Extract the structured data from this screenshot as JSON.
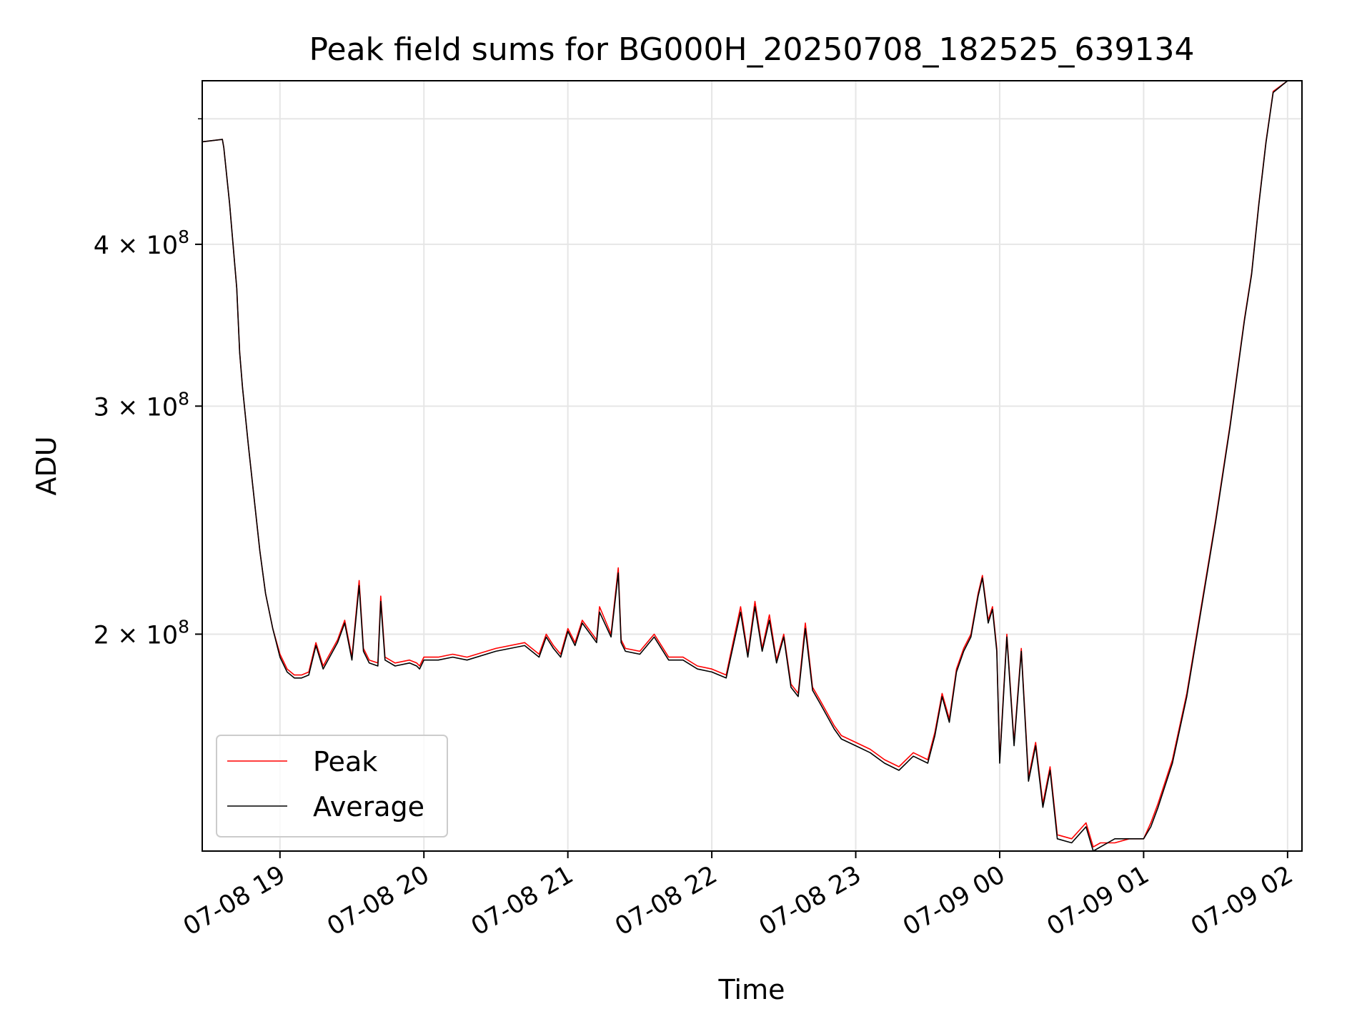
{
  "chart_data": {
    "type": "line",
    "title": "Peak field sums for BG000H_20250708_182525_639134",
    "xlabel": "Time",
    "ylabel": "ADU",
    "y_scale": "log",
    "grid": true,
    "legend_position": "lower-left",
    "x_tick_labels": [
      "07-08 19",
      "07-08 20",
      "07-08 21",
      "07-08 22",
      "07-08 23",
      "07-09 00",
      "07-09 01",
      "07-09 02"
    ],
    "x_ticks_hours": [
      19,
      20,
      21,
      22,
      23,
      24,
      25,
      26
    ],
    "xlim_hours": [
      18.46,
      26.1
    ],
    "y_ticks": [
      {
        "value": 200000000,
        "mantissa": "2",
        "base": "10",
        "exp": "8"
      },
      {
        "value": 300000000,
        "mantissa": "3",
        "base": "10",
        "exp": "8"
      },
      {
        "value": 400000000,
        "mantissa": "4",
        "base": "10",
        "exp": "8"
      }
    ],
    "y_minor_ticks": [
      500000000
    ],
    "ylim": [
      136000000,
      535000000
    ],
    "time_unit": "hours since 2025-07-08 00:00",
    "x": [
      18.46,
      18.6,
      18.61,
      18.65,
      18.7,
      18.72,
      18.74,
      18.78,
      18.82,
      18.86,
      18.9,
      18.95,
      19.0,
      19.05,
      19.1,
      19.15,
      19.2,
      19.25,
      19.3,
      19.4,
      19.45,
      19.5,
      19.55,
      19.58,
      19.62,
      19.68,
      19.7,
      19.73,
      19.8,
      19.9,
      19.95,
      19.97,
      20.0,
      20.1,
      20.2,
      20.3,
      20.5,
      20.7,
      20.8,
      20.85,
      20.9,
      20.95,
      21.0,
      21.05,
      21.1,
      21.2,
      21.22,
      21.3,
      21.35,
      21.37,
      21.4,
      21.5,
      21.6,
      21.7,
      21.8,
      21.9,
      22.0,
      22.1,
      22.2,
      22.25,
      22.3,
      22.35,
      22.4,
      22.45,
      22.5,
      22.55,
      22.6,
      22.65,
      22.7,
      22.75,
      22.8,
      22.85,
      22.9,
      23.0,
      23.1,
      23.2,
      23.3,
      23.4,
      23.5,
      23.55,
      23.6,
      23.65,
      23.7,
      23.75,
      23.8,
      23.85,
      23.88,
      23.92,
      23.95,
      23.98,
      24.0,
      24.05,
      24.1,
      24.15,
      24.2,
      24.25,
      24.3,
      24.35,
      24.4,
      24.5,
      24.55,
      24.6,
      24.65,
      24.7,
      24.8,
      24.9,
      25.0,
      25.05,
      25.1,
      25.2,
      25.3,
      25.4,
      25.5,
      25.6,
      25.7,
      25.75,
      25.8,
      25.85,
      25.9,
      26.0,
      26.1
    ],
    "series": [
      {
        "name": "Peak",
        "color": "#ff0000",
        "values": [
          480000000,
          482000000,
          475000000,
          430000000,
          370000000,
          330000000,
          310000000,
          280000000,
          255000000,
          232000000,
          215000000,
          202000000,
          193000000,
          188000000,
          186000000,
          186000000,
          187000000,
          197000000,
          189000000,
          198000000,
          205000000,
          192000000,
          220000000,
          195000000,
          191000000,
          190000000,
          214000000,
          192000000,
          190000000,
          191000000,
          190000000,
          189000000,
          192000000,
          192000000,
          193000000,
          192000000,
          195000000,
          197000000,
          193000000,
          200000000,
          196000000,
          193000000,
          202000000,
          197000000,
          205000000,
          198000000,
          210000000,
          200000000,
          225000000,
          198000000,
          195000000,
          194000000,
          200000000,
          192000000,
          192000000,
          189000000,
          188000000,
          186000000,
          210000000,
          193000000,
          212000000,
          195000000,
          207000000,
          191000000,
          200000000,
          183000000,
          180000000,
          204000000,
          182000000,
          178000000,
          174000000,
          170000000,
          167000000,
          165000000,
          163000000,
          160000000,
          158000000,
          162000000,
          160000000,
          168000000,
          180000000,
          172000000,
          188000000,
          195000000,
          200000000,
          215000000,
          222000000,
          205000000,
          210000000,
          195000000,
          160000000,
          200000000,
          165000000,
          195000000,
          155000000,
          165000000,
          148000000,
          158000000,
          140000000,
          139000000,
          141000000,
          143000000,
          137000000,
          138000000,
          138000000,
          139000000,
          139000000,
          143000000,
          148000000,
          160000000,
          180000000,
          210000000,
          245000000,
          290000000,
          350000000,
          380000000,
          430000000,
          480000000,
          525000000,
          535000000,
          535000000
        ]
      },
      {
        "name": "Average",
        "color": "#000000",
        "values": [
          480000000,
          482000000,
          475000000,
          430000000,
          370000000,
          330000000,
          310000000,
          280000000,
          255000000,
          232000000,
          215000000,
          202000000,
          192000000,
          187000000,
          185000000,
          185000000,
          186000000,
          196000000,
          188000000,
          197000000,
          204000000,
          191000000,
          218000000,
          194000000,
          190000000,
          189000000,
          212000000,
          191000000,
          189000000,
          190000000,
          189000000,
          188000000,
          191000000,
          191000000,
          192000000,
          191000000,
          194000000,
          196000000,
          192000000,
          199000000,
          195000000,
          192000000,
          201000000,
          196000000,
          204000000,
          197000000,
          208000000,
          199000000,
          223000000,
          197000000,
          194000000,
          193000000,
          199000000,
          191000000,
          191000000,
          188000000,
          187000000,
          185000000,
          208000000,
          192000000,
          210000000,
          194000000,
          205000000,
          190000000,
          199000000,
          182000000,
          179000000,
          202000000,
          181000000,
          177000000,
          173000000,
          169000000,
          166000000,
          164000000,
          162000000,
          159000000,
          157000000,
          161000000,
          159000000,
          167000000,
          179000000,
          171000000,
          187000000,
          194000000,
          199000000,
          214000000,
          221000000,
          204000000,
          209000000,
          194000000,
          159000000,
          199000000,
          164000000,
          194000000,
          154000000,
          164000000,
          147000000,
          157000000,
          139000000,
          138000000,
          140000000,
          142000000,
          136000000,
          137000000,
          139000000,
          139000000,
          139000000,
          142000000,
          147000000,
          159000000,
          179000000,
          209000000,
          244000000,
          289000000,
          349000000,
          379000000,
          429000000,
          479000000,
          524000000,
          535000000,
          535000000
        ]
      }
    ]
  }
}
